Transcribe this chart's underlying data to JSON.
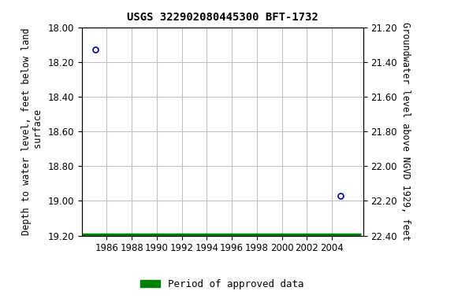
{
  "title": "USGS 322902080445300 BFT-1732",
  "left_ylabel": "Depth to water level, feet below land\n surface",
  "right_ylabel": "Groundwater level above NGVD 1929, feet",
  "xlim": [
    1984.0,
    2006.5
  ],
  "ylim_left_top": 18.0,
  "ylim_left_bottom": 19.2,
  "ylim_right_top": 22.4,
  "ylim_right_bottom": 21.2,
  "xticks": [
    1986,
    1988,
    1990,
    1992,
    1994,
    1996,
    1998,
    2000,
    2002,
    2004
  ],
  "yticks_left": [
    18.0,
    18.2,
    18.4,
    18.6,
    18.8,
    19.0,
    19.2
  ],
  "yticks_right": [
    21.2,
    21.4,
    21.6,
    21.8,
    22.0,
    22.2,
    22.4
  ],
  "data_points": [
    {
      "x": 1985.1,
      "y_left": 18.13
    },
    {
      "x": 2004.7,
      "y_left": 18.97
    }
  ],
  "green_bar_y_left": 19.195,
  "green_bar_x1": 1984.05,
  "green_bar_x2": 2006.3,
  "green_color": "#008000",
  "marker_color": "#0000bb",
  "background_color": "#ffffff",
  "grid_color": "#c0c0c0",
  "title_fontsize": 10,
  "label_fontsize": 8.5,
  "tick_fontsize": 8.5,
  "legend_fontsize": 9
}
